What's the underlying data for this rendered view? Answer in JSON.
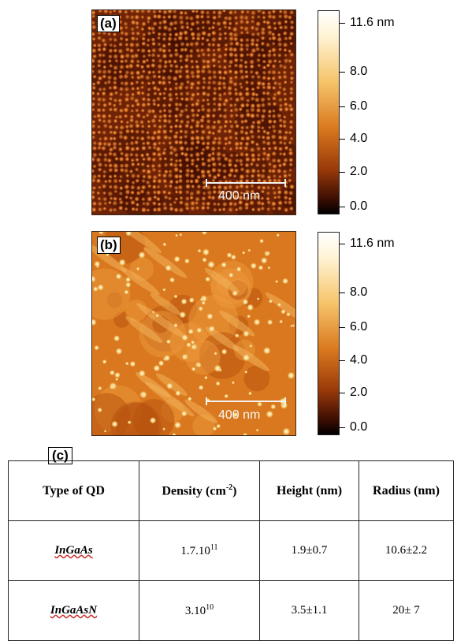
{
  "panels": [
    {
      "id": "a",
      "label": "(a)",
      "scalebar": "400 nm"
    },
    {
      "id": "b",
      "label": "(b)",
      "scalebar": "400 nm"
    }
  ],
  "colorbar": {
    "labels": [
      "11.6 nm",
      "8.0",
      "6.0",
      "4.0",
      "2.0",
      "0.0"
    ],
    "colors": [
      "#ffffff",
      "#f6c46a",
      "#d9781e",
      "#9a3a0a",
      "#000000"
    ]
  },
  "table_label": "(c)",
  "table": {
    "headers": [
      "Type of QD",
      "Density (cm",
      "-2",
      ")",
      "Height (nm)",
      "Radius (nm)"
    ],
    "rows": [
      {
        "type": "InGaAs",
        "density_base": "1.7.10",
        "density_exp": "11",
        "height": "1.9±0.7",
        "radius": "10.6±2.2"
      },
      {
        "type": "InGaAsN",
        "density_base": "3.10",
        "density_exp": "10",
        "height": "3.5±1.1",
        "radius": "20± 7"
      }
    ]
  }
}
